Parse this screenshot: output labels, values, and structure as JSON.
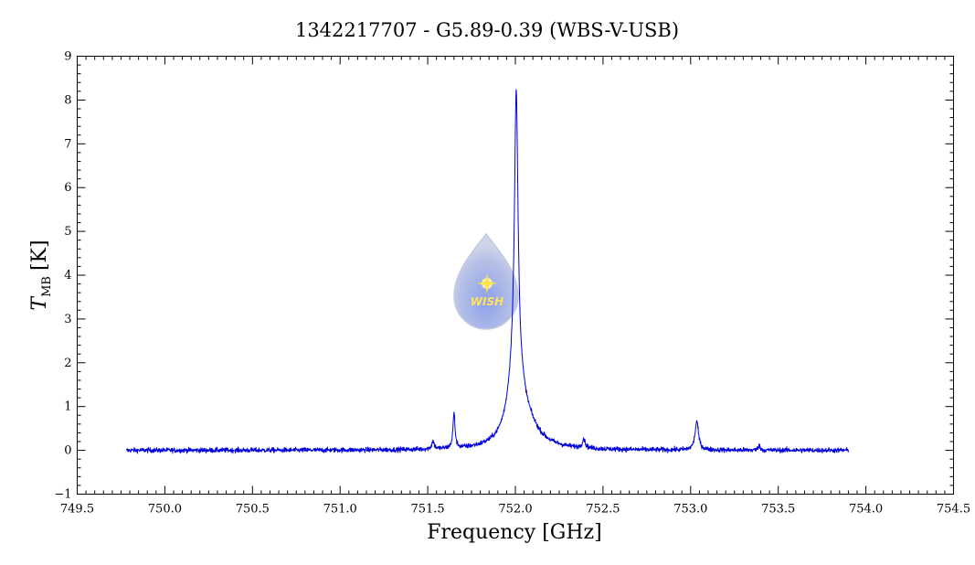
{
  "chart_data": {
    "type": "line",
    "title": "1342217707 - G5.89-0.39 (WBS-V-USB)",
    "xlabel": "Frequency [GHz]",
    "ylabel_main": "T",
    "ylabel_sub": "MB",
    "ylabel_unit": "[K]",
    "xlim": [
      749.5,
      754.5
    ],
    "ylim": [
      -1,
      9
    ],
    "xticks": [
      749.5,
      750.0,
      750.5,
      751.0,
      751.5,
      752.0,
      752.5,
      753.0,
      753.5,
      754.0,
      754.5
    ],
    "xtick_labels": [
      "749.5",
      "750.0",
      "750.5",
      "751.0",
      "751.5",
      "752.0",
      "752.5",
      "753.0",
      "753.5",
      "754.0",
      "754.5"
    ],
    "yticks": [
      -1,
      0,
      1,
      2,
      3,
      4,
      5,
      6,
      7,
      8,
      9
    ],
    "ytick_labels": [
      "−1",
      "0",
      "1",
      "2",
      "3",
      "4",
      "5",
      "6",
      "7",
      "8",
      "9"
    ],
    "grid": false,
    "series": [
      {
        "color": "#0000dd",
        "x_range": [
          749.78,
          753.9
        ],
        "noise_rms": 0.04,
        "peaks": [
          {
            "center": 752.005,
            "amplitude": 6.2,
            "width": 0.012
          },
          {
            "center": 752.0,
            "amplitude": 1.6,
            "width": 0.045
          },
          {
            "center": 752.05,
            "amplitude": 0.55,
            "width": 0.09
          },
          {
            "center": 751.65,
            "amplitude": 0.8,
            "width": 0.007
          },
          {
            "center": 751.53,
            "amplitude": 0.18,
            "width": 0.008
          },
          {
            "center": 752.39,
            "amplitude": 0.2,
            "width": 0.01
          },
          {
            "center": 753.035,
            "amplitude": 0.65,
            "width": 0.012
          },
          {
            "center": 753.39,
            "amplitude": 0.12,
            "width": 0.006
          }
        ]
      }
    ]
  },
  "logo": {
    "text": "WISH",
    "icon": "water-drop-star-icon"
  }
}
